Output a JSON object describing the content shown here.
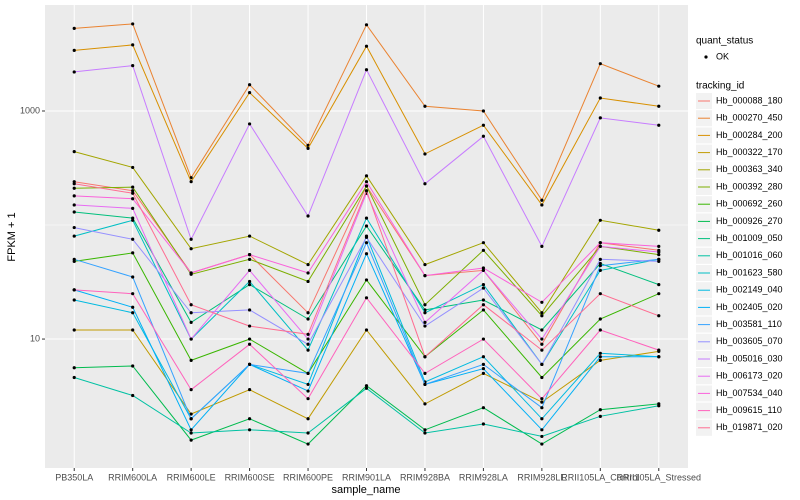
{
  "chart_data": {
    "type": "line",
    "x_label": "sample_name",
    "y_label": "FPKM + 1",
    "log_y": true,
    "grid": true,
    "ylim": [
      0.74,
      8500
    ],
    "yticks": [
      10,
      1000
    ],
    "categories": [
      "PB350LA",
      "RRIM600LA",
      "RRIM600LE",
      "RRIM600SE",
      "RRIM600PE",
      "RRIM901LA",
      "RRIM928BA",
      "RRIM928LA",
      "RRIM928LE",
      "RRII105LA_Control",
      "RRII105LA_Stressed"
    ],
    "point_legend": {
      "title": "quant_status",
      "labels": [
        "OK"
      ]
    },
    "legend_title": "tracking_id",
    "series": [
      {
        "name": "Hb_000088_180",
        "color": "#F8766D",
        "values": [
          240,
          200,
          38,
          55,
          17,
          220,
          36,
          40,
          9,
          70,
          60
        ]
      },
      {
        "name": "Hb_000270_450",
        "color": "#EA8331",
        "values": [
          5300,
          5800,
          260,
          1700,
          500,
          5700,
          1100,
          1000,
          165,
          2600,
          1650
        ]
      },
      {
        "name": "Hb_000284_200",
        "color": "#D89000",
        "values": [
          3400,
          3800,
          240,
          1450,
          470,
          3700,
          420,
          750,
          150,
          1300,
          1100
        ]
      },
      {
        "name": "Hb_000322_170",
        "color": "#C09B00",
        "values": [
          12,
          12,
          2.2,
          3.6,
          2,
          12,
          2.7,
          5,
          2.8,
          6.5,
          7.8
        ]
      },
      {
        "name": "Hb_000363_340",
        "color": "#A3A500",
        "values": [
          440,
          320,
          62,
          80,
          45,
          270,
          45,
          70,
          17,
          110,
          90
        ]
      },
      {
        "name": "Hb_000392_280",
        "color": "#7CAE00",
        "values": [
          210,
          215,
          37,
          50,
          32,
          220,
          20,
          60,
          16,
          65,
          55
        ]
      },
      {
        "name": "Hb_000692_260",
        "color": "#39B600",
        "values": [
          48,
          57,
          6.5,
          10,
          5,
          33,
          7,
          18,
          4.6,
          15,
          25
        ]
      },
      {
        "name": "Hb_000926_270",
        "color": "#00BB4E",
        "values": [
          5.6,
          5.8,
          1.3,
          2,
          1.2,
          3.9,
          1.6,
          2.5,
          1.2,
          2.4,
          2.7
        ]
      },
      {
        "name": "Hb_001009_050",
        "color": "#00BF7D",
        "values": [
          130,
          115,
          14,
          30,
          15,
          98,
          18,
          22,
          12,
          46,
          30
        ]
      },
      {
        "name": "Hb_001016_060",
        "color": "#00C1A3",
        "values": [
          4.6,
          3.2,
          1.5,
          1.6,
          1.5,
          3.7,
          1.5,
          1.8,
          1.4,
          2.1,
          2.6
        ]
      },
      {
        "name": "Hb_001623_580",
        "color": "#00BFC4",
        "values": [
          80,
          110,
          10,
          32,
          8,
          115,
          17,
          30,
          6,
          40,
          50
        ]
      },
      {
        "name": "Hb_002149_040",
        "color": "#00BAE0",
        "values": [
          22,
          17,
          2,
          6,
          4,
          80,
          4.2,
          7,
          2,
          7.5,
          7
        ]
      },
      {
        "name": "Hb_002405_020",
        "color": "#00B0F6",
        "values": [
          27,
          19,
          1.6,
          6,
          3.5,
          56,
          4,
          5.5,
          1.6,
          7,
          7
        ]
      },
      {
        "name": "Hb_003581_110",
        "color": "#35A2FF",
        "values": [
          50,
          35,
          2,
          6,
          5,
          70,
          4,
          6,
          2.5,
          44,
          50
        ]
      },
      {
        "name": "Hb_003605_070",
        "color": "#9590FF",
        "values": [
          95,
          75,
          17,
          18,
          9,
          78,
          13,
          28,
          6,
          50,
          48
        ]
      },
      {
        "name": "Hb_005016_030",
        "color": "#C77CFF",
        "values": [
          2200,
          2500,
          75,
          770,
          120,
          2300,
          230,
          600,
          65,
          870,
          750
        ]
      },
      {
        "name": "Hb_006173_020",
        "color": "#E76BF3",
        "values": [
          150,
          140,
          10,
          40,
          10,
          190,
          14,
          40,
          10,
          65,
          58
        ]
      },
      {
        "name": "Hb_007534_040",
        "color": "#FA62DB",
        "values": [
          180,
          170,
          38,
          55,
          38,
          240,
          36,
          42,
          21,
          70,
          65
        ]
      },
      {
        "name": "Hb_009615_110",
        "color": "#FF62BC",
        "values": [
          27,
          25,
          3.6,
          9,
          3,
          23,
          5,
          10,
          3,
          12,
          8
        ]
      },
      {
        "name": "Hb_019871_020",
        "color": "#FF6C91",
        "values": [
          230,
          190,
          20,
          13,
          11,
          200,
          7,
          20,
          8,
          25,
          16
        ]
      }
    ]
  }
}
